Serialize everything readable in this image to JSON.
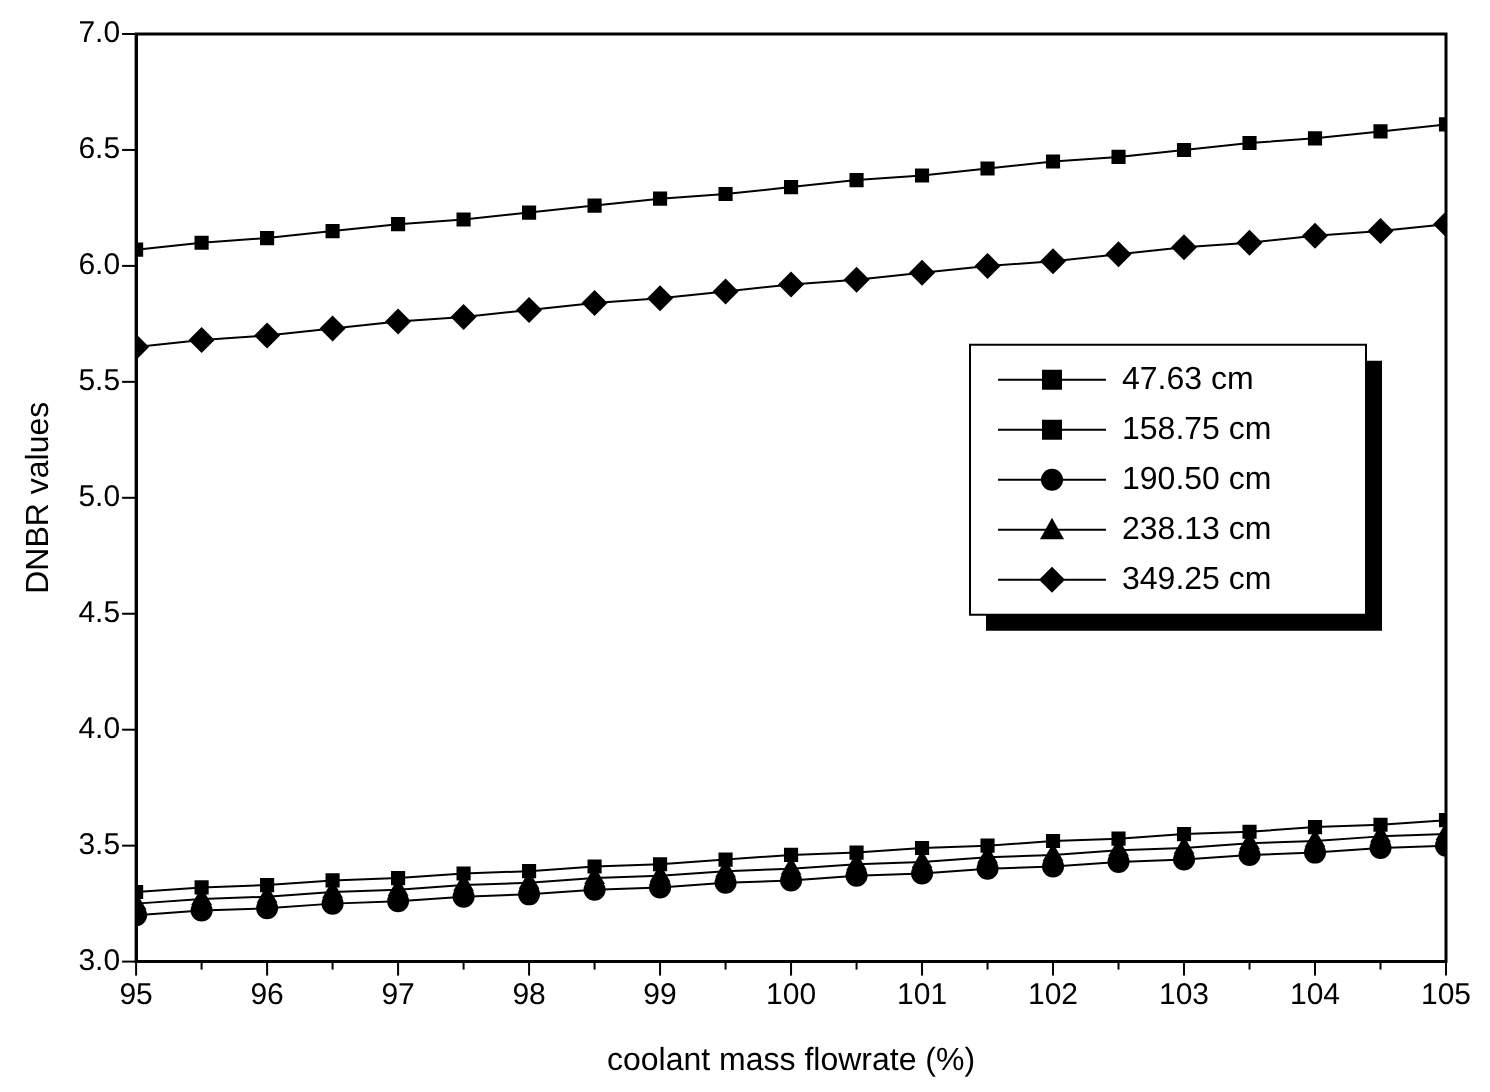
{
  "chart_data": {
    "type": "line",
    "xlabel": "coolant mass flowrate (%)",
    "ylabel": "DNBR values",
    "x": [
      95,
      95.5,
      96,
      96.5,
      97,
      97.5,
      98,
      98.5,
      99,
      99.5,
      100,
      100.5,
      101,
      101.5,
      102,
      102.5,
      103,
      103.5,
      104,
      104.5,
      105
    ],
    "series": [
      {
        "name": "47.63 cm",
        "color": "#000000",
        "marker": "square",
        "values": [
          6.07,
          6.1,
          6.12,
          6.15,
          6.18,
          6.2,
          6.23,
          6.26,
          6.29,
          6.31,
          6.34,
          6.37,
          6.39,
          6.42,
          6.45,
          6.47,
          6.5,
          6.53,
          6.55,
          6.58,
          6.61
        ]
      },
      {
        "name": "158.75 cm",
        "color": "#000000",
        "marker": "square",
        "values": [
          3.3,
          3.32,
          3.33,
          3.35,
          3.36,
          3.38,
          3.39,
          3.41,
          3.42,
          3.44,
          3.46,
          3.47,
          3.49,
          3.5,
          3.52,
          3.53,
          3.55,
          3.56,
          3.58,
          3.59,
          3.61
        ]
      },
      {
        "name": "190.50 cm",
        "color": "#000000",
        "marker": "circle",
        "values": [
          3.2,
          3.22,
          3.23,
          3.25,
          3.26,
          3.28,
          3.29,
          3.31,
          3.32,
          3.34,
          3.35,
          3.37,
          3.38,
          3.4,
          3.41,
          3.43,
          3.44,
          3.46,
          3.47,
          3.49,
          3.5
        ]
      },
      {
        "name": "238.13 cm",
        "color": "#000000",
        "marker": "triangle",
        "values": [
          3.25,
          3.27,
          3.28,
          3.3,
          3.31,
          3.33,
          3.34,
          3.36,
          3.37,
          3.39,
          3.4,
          3.42,
          3.43,
          3.45,
          3.46,
          3.48,
          3.49,
          3.51,
          3.52,
          3.54,
          3.55
        ]
      },
      {
        "name": "349.25 cm",
        "color": "#000000",
        "marker": "diamond",
        "values": [
          5.65,
          5.68,
          5.7,
          5.73,
          5.76,
          5.78,
          5.81,
          5.84,
          5.86,
          5.89,
          5.92,
          5.94,
          5.97,
          6.0,
          6.02,
          6.05,
          6.08,
          6.1,
          6.13,
          6.15,
          6.18
        ]
      }
    ],
    "xlim": [
      95,
      105
    ],
    "xticks": [
      95,
      {
        "value": 95.5,
        "label": null
      },
      96,
      {
        "value": 96.5,
        "label": null
      },
      97,
      {
        "value": 97.5,
        "label": null
      },
      98,
      {
        "value": 98.5,
        "label": null
      },
      99,
      {
        "value": 99.5,
        "label": null
      },
      100,
      {
        "value": 100.5,
        "label": null
      },
      101,
      {
        "value": 101.5,
        "label": null
      },
      102,
      {
        "value": 102.5,
        "label": null
      },
      103,
      {
        "value": 103.5,
        "label": null
      },
      104,
      {
        "value": 104.5,
        "label": null
      },
      105
    ],
    "ylim": [
      3.0,
      7.0
    ],
    "yticks": [
      {
        "value": 3,
        "label": "3.0"
      },
      {
        "value": 3.5,
        "label": "3.5"
      },
      {
        "value": 4,
        "label": "4.0"
      },
      {
        "value": 4.5,
        "label": "4.5"
      },
      {
        "value": 5,
        "label": "5.0"
      },
      {
        "value": 5.5,
        "label": "5.5"
      },
      {
        "value": 6,
        "label": "6.0"
      },
      {
        "value": 6.5,
        "label": "6.5"
      },
      {
        "value": 7,
        "label": "7.0"
      }
    ],
    "grid": false,
    "legend": "right",
    "line_style": "solid"
  }
}
